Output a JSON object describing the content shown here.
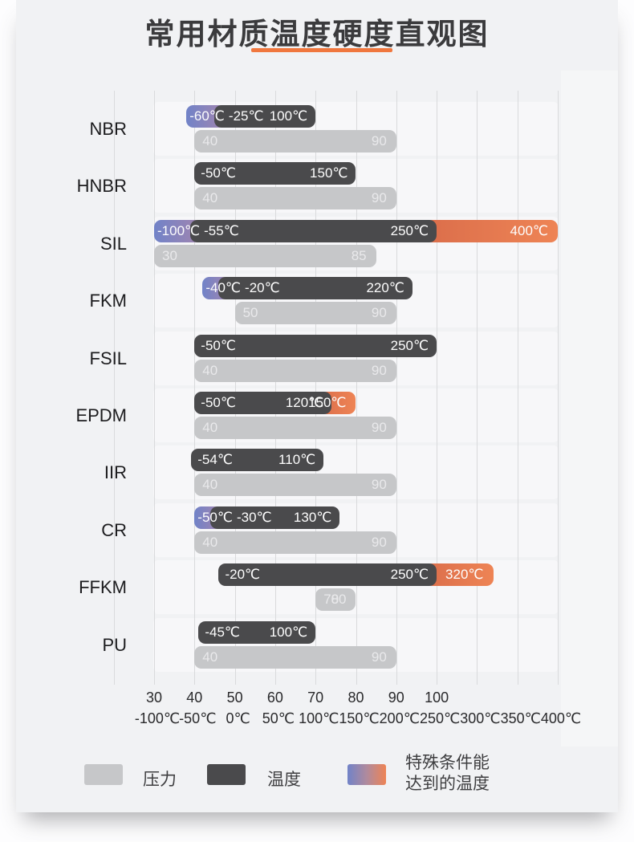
{
  "title": "常用材质温度硬度直观图",
  "colors": {
    "card_bg": "#f1f2f4",
    "accent_underline": "#f0773e",
    "bar_temperature": "#4a4a4c",
    "bar_pressure": "#c6c7c9",
    "special_cold_gradient": [
      "#7183c8",
      "#a284af"
    ],
    "special_hot_gradient": [
      "#db6e4b",
      "#ee8455"
    ],
    "gridline": "#d9dadc",
    "bar_text": "#fdfdfd",
    "pressure_text": "#e9e9eb",
    "title_text": "#3b3b3d"
  },
  "legend": [
    {
      "swatch": "pressure",
      "label": "压力"
    },
    {
      "swatch": "temperature",
      "label": "温度"
    },
    {
      "swatch": "special",
      "label_lines": [
        "特殊条件能",
        "达到的温度"
      ]
    }
  ],
  "chart_data": {
    "type": "bar",
    "orientation": "horizontal-range",
    "temp_axis": {
      "range": [
        -100,
        400
      ],
      "tick_values": [
        -100,
        -50,
        0,
        50,
        100,
        150,
        200,
        250,
        300,
        350,
        400
      ],
      "tick_labels": [
        "-100℃",
        "-50℃",
        "0℃",
        "50℃",
        "100℃",
        "150℃",
        "200℃",
        "250℃",
        "300℃",
        "350℃",
        "400℃"
      ]
    },
    "hardness_axis": {
      "range": [
        30,
        100
      ],
      "tick_values": [
        30,
        40,
        50,
        60,
        70,
        80,
        90,
        100
      ],
      "tick_labels": [
        "30",
        "40",
        "50",
        "60",
        "70",
        "80",
        "90",
        "100"
      ]
    },
    "materials": [
      {
        "name": "NBR",
        "temp_min": -25,
        "temp_max": 100,
        "special_cold": -60,
        "special_hot": null,
        "hardness_min": 40,
        "hardness_max": 90,
        "labels": {
          "cold": "-60℃",
          "min": "-25℃",
          "max": "100℃",
          "hot": null,
          "h_min": "40",
          "h_max": "90"
        }
      },
      {
        "name": "HNBR",
        "temp_min": -50,
        "temp_max": 150,
        "special_cold": null,
        "special_hot": null,
        "hardness_min": 40,
        "hardness_max": 90,
        "labels": {
          "cold": null,
          "min": "-50℃",
          "max": "150℃",
          "hot": null,
          "h_min": "40",
          "h_max": "90"
        }
      },
      {
        "name": "SIL",
        "temp_min": -55,
        "temp_max": 250,
        "special_cold": -100,
        "special_hot": 400,
        "hardness_min": 30,
        "hardness_max": 85,
        "labels": {
          "cold": "-100℃",
          "min": "-55℃",
          "max": "250℃",
          "hot": "400℃",
          "h_min": "30",
          "h_max": "85"
        }
      },
      {
        "name": "FKM",
        "temp_min": -20,
        "temp_max": 220,
        "special_cold": -40,
        "special_hot": null,
        "hardness_min": 50,
        "hardness_max": 90,
        "labels": {
          "cold": "-40℃",
          "min": "-20℃",
          "max": "220℃",
          "hot": null,
          "h_min": "50",
          "h_max": "90"
        }
      },
      {
        "name": "FSIL",
        "temp_min": -50,
        "temp_max": 250,
        "special_cold": null,
        "special_hot": null,
        "hardness_min": 40,
        "hardness_max": 90,
        "labels": {
          "cold": null,
          "min": "-50℃",
          "max": "250℃",
          "hot": null,
          "h_min": "40",
          "h_max": "90"
        }
      },
      {
        "name": "EPDM",
        "temp_min": -50,
        "temp_max": 120,
        "special_cold": null,
        "special_hot": 150,
        "hardness_min": 40,
        "hardness_max": 90,
        "labels": {
          "cold": null,
          "min": "-50℃",
          "max": "120℃",
          "hot": "150℃",
          "h_min": "40",
          "h_max": "90"
        }
      },
      {
        "name": "IIR",
        "temp_min": -54,
        "temp_max": 110,
        "special_cold": null,
        "special_hot": null,
        "hardness_min": 40,
        "hardness_max": 90,
        "labels": {
          "cold": null,
          "min": "-54℃",
          "max": "110℃",
          "hot": null,
          "h_min": "40",
          "h_max": "90"
        }
      },
      {
        "name": "CR",
        "temp_min": -30,
        "temp_max": 130,
        "special_cold": -50,
        "special_hot": null,
        "hardness_min": 40,
        "hardness_max": 90,
        "labels": {
          "cold": "-50℃",
          "min": "-30℃",
          "max": "130℃",
          "hot": null,
          "h_min": "40",
          "h_max": "90"
        }
      },
      {
        "name": "FFKM",
        "temp_min": -20,
        "temp_max": 250,
        "special_cold": null,
        "special_hot": 320,
        "hardness_min": 70,
        "hardness_max": 80,
        "labels": {
          "cold": null,
          "min": "-20℃",
          "max": "250℃",
          "hot": "320℃",
          "h_min": "70",
          "h_max": "80"
        }
      },
      {
        "name": "PU",
        "temp_min": -45,
        "temp_max": 100,
        "special_cold": null,
        "special_hot": null,
        "hardness_min": 40,
        "hardness_max": 90,
        "labels": {
          "cold": null,
          "min": "-45℃",
          "max": "100℃",
          "hot": null,
          "h_min": "40",
          "h_max": "90"
        }
      }
    ]
  }
}
